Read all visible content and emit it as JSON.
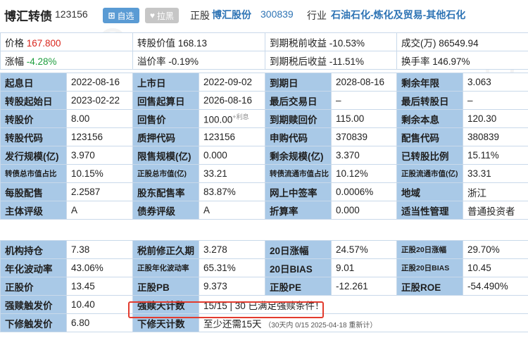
{
  "header": {
    "bond_name": "博汇转债",
    "bond_code": "123156",
    "fav_label": "自选",
    "fav_icon": "plus-icon",
    "black_label": "拉黑",
    "black_icon": "heart-icon",
    "stock_label": "正股",
    "stock_name": "博汇股份",
    "stock_code": "300839",
    "industry_label": "行业",
    "industry_value": "石油石化-炼化及贸易-其他石化"
  },
  "top": [
    [
      {
        "k": "价格",
        "v": "167.800",
        "color": "red"
      },
      {
        "k": "转股价值",
        "v": "168.13"
      },
      {
        "k": "到期税前收益",
        "v": "-10.53%"
      },
      {
        "k": "成交(万)",
        "v": "86549.94"
      }
    ],
    [
      {
        "k": "涨幅",
        "v": "-4.28%",
        "color": "green"
      },
      {
        "k": "溢价率",
        "v": "-0.19%"
      },
      {
        "k": "到期税后收益",
        "v": "-11.51%"
      },
      {
        "k": "换手率",
        "v": "146.97%"
      }
    ]
  ],
  "info": {
    "r1": {
      "l1": "起息日",
      "v1": "2022-08-16",
      "l2": "上市日",
      "v2": "2022-09-02",
      "l3": "到期日",
      "v3": "2028-08-16",
      "l4": "剩余年限",
      "v4": "3.063"
    },
    "r2": {
      "l1": "转股起始日",
      "v1": "2023-02-22",
      "l2": "回售起算日",
      "v2": "2026-08-16",
      "l3": "最后交易日",
      "v3": "–",
      "l4": "最后转股日",
      "v4": "–"
    },
    "r3": {
      "l1": "转股价",
      "v1": "8.00",
      "l2": "回售价",
      "v2": "100.00",
      "v2note": "+利息",
      "l3": "到期赎回价",
      "v3": "115.00",
      "l4": "剩余本息",
      "v4": "120.30"
    },
    "r4": {
      "l1": "转股代码",
      "v1": "123156",
      "l2": "质押代码",
      "v2": "123156",
      "l3": "申购代码",
      "v3": "370839",
      "l4": "配售代码",
      "v4": "380839"
    },
    "r5": {
      "l1": "发行规模(亿)",
      "v1": "3.970",
      "l2": "限售规模(亿)",
      "v2": "0.000",
      "l3": "剩余规模(亿)",
      "v3": "3.370",
      "l4": "已转股比例",
      "v4": "15.11%"
    },
    "r6": {
      "l1": "转债总市值占比",
      "v1": "10.15%",
      "l2": "正股总市值(亿)",
      "v2": "33.21",
      "l3": "转债流通市值占比",
      "v3": "10.12%",
      "l4": "正股流通市值(亿)",
      "v4": "33.31"
    },
    "r7": {
      "l1": "每股配售",
      "v1": "2.2587",
      "l2": "股东配售率",
      "v2": "83.87%",
      "l3": "网上中签率",
      "v3": "0.0006%",
      "l4": "地域",
      "v4": "浙江"
    },
    "r8": {
      "l1": "主体评级",
      "v1": "A",
      "l2": "债券评级",
      "v2": "A",
      "l3": "折算率",
      "v3": "0.000",
      "l4": "适当性管理",
      "v4": "普通投资者"
    }
  },
  "stats": {
    "r1": {
      "l1": "机构持仓",
      "v1": "7.38",
      "l2": "税前修正久期",
      "v2": "3.278",
      "l3": "20日涨幅",
      "v3": "24.57%",
      "l4": "正股20日涨幅",
      "v4": "29.70%"
    },
    "r2": {
      "l1": "年化波动率",
      "v1": "43.06%",
      "l2": "正股年化波动率",
      "v2": "65.31%",
      "l3": "20日BIAS",
      "v3": "9.01",
      "l4": "正股20日BIAS",
      "v4": "10.45"
    },
    "r3": {
      "l1": "正股价",
      "v1": "13.45",
      "l2": "正股PB",
      "v2": "9.373",
      "l3": "正股PE",
      "v3": "-12.261",
      "l4": "正股ROE",
      "v4": "-54.490%"
    },
    "r4": {
      "l1": "强赎触发价",
      "v1": "10.40",
      "l2": "强赎天计数",
      "v2": "15/15 | 30 已满足强赎条件！"
    },
    "r5": {
      "l1": "下修触发价",
      "v1": "6.80",
      "l2": "下修天计数",
      "v2": "至少还需15天",
      "v2note": "（30天内 0/15  2025-04-18 重新计）"
    }
  },
  "colors": {
    "label_bg": "#a9c9e7",
    "link": "#2e74b5",
    "red": "#d9261c",
    "green": "#1e9e3e",
    "highlight_border": "#e23b2e"
  }
}
